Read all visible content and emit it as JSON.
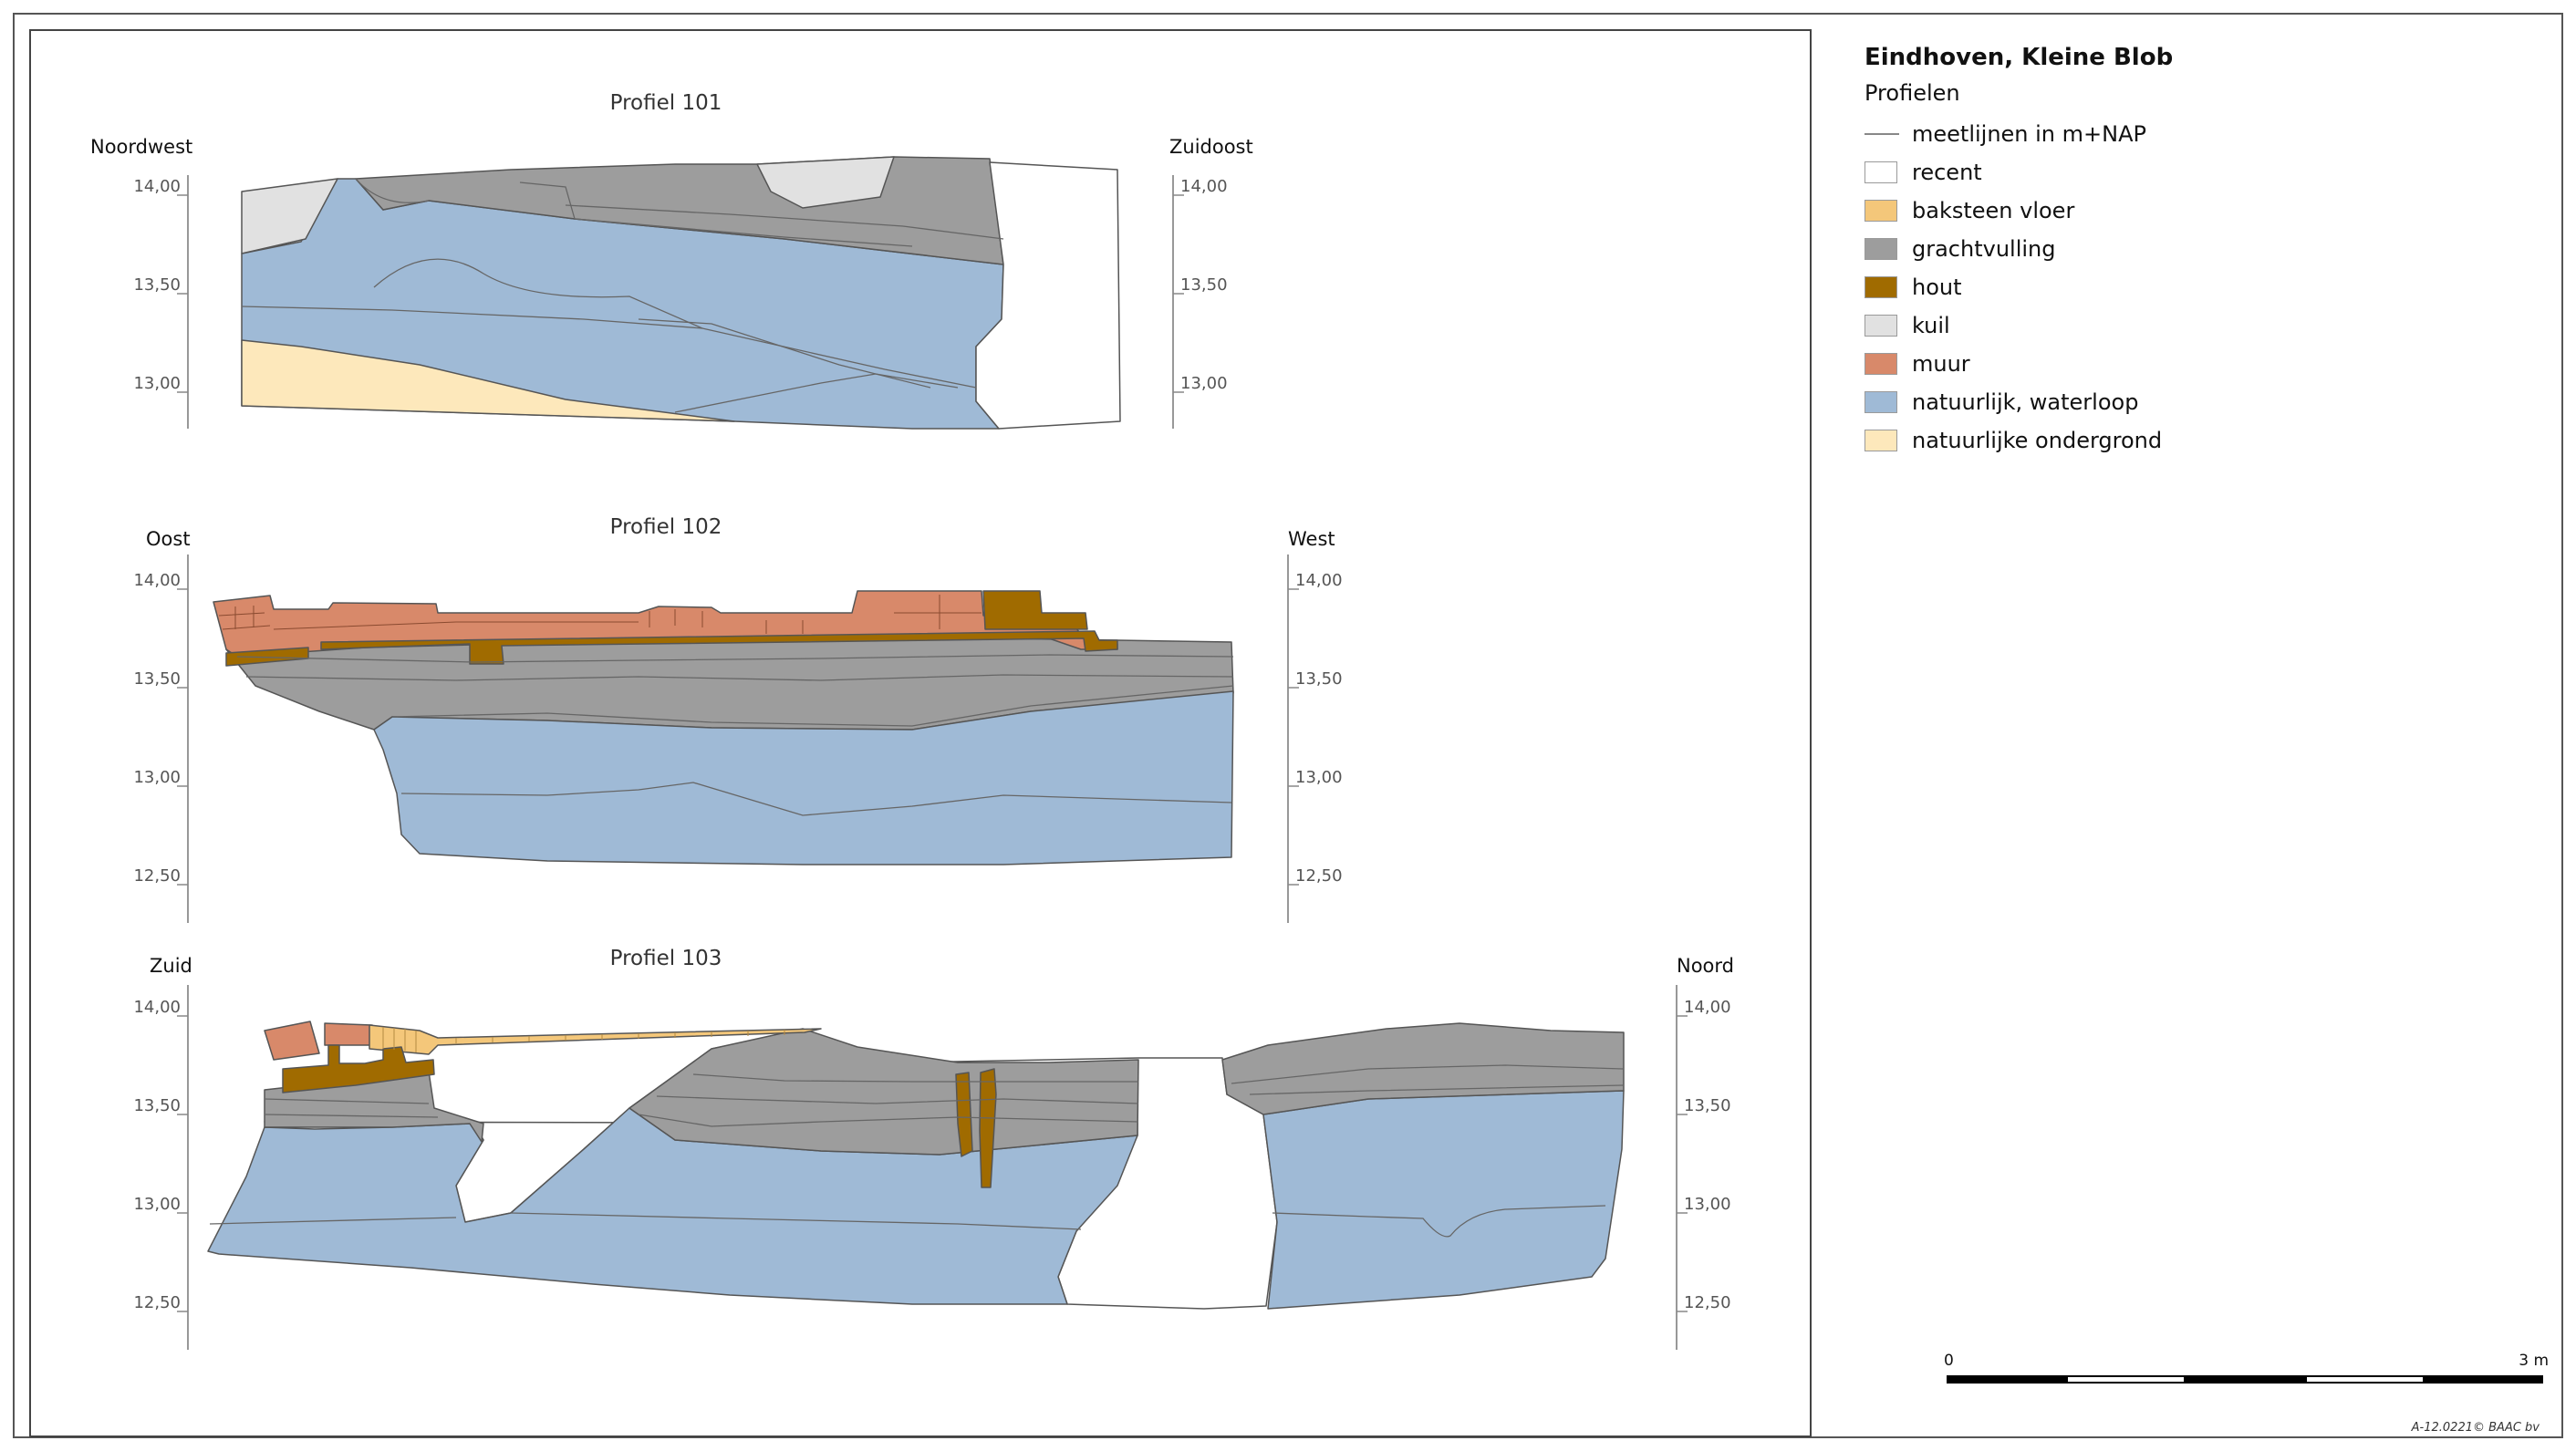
{
  "legend": {
    "title": "Eindhoven, Kleine Blob",
    "subtitle": "Profielen",
    "measure_line_label": "meetlijnen in m+NAP",
    "items": [
      {
        "label": "recent",
        "color": "#ffffff"
      },
      {
        "label": "baksteen vloer",
        "color": "#f4c77a"
      },
      {
        "label": "grachtvulling",
        "color": "#9d9d9d"
      },
      {
        "label": "hout",
        "color": "#a06b00"
      },
      {
        "label": "kuil",
        "color": "#e1e1e1"
      },
      {
        "label": "muur",
        "color": "#d8896a"
      },
      {
        "label": "natuurlijk, waterloop",
        "color": "#9fbad6"
      },
      {
        "label": "natuurlijke ondergrond",
        "color": "#fde8bb"
      }
    ]
  },
  "profiles": [
    {
      "title": "Profiel 101",
      "left_label": "Noordwest",
      "right_label": "Zuidoost",
      "ticks": [
        "14,00",
        "13,50",
        "13,00"
      ]
    },
    {
      "title": "Profiel 102",
      "left_label": "Oost",
      "right_label": "West",
      "ticks": [
        "14,00",
        "13,50",
        "13,00",
        "12,50"
      ]
    },
    {
      "title": "Profiel 103",
      "left_label": "Zuid",
      "right_label": "Noord",
      "ticks": [
        "14,00",
        "13,50",
        "13,00",
        "12,50"
      ]
    }
  ],
  "scale": {
    "start": "0",
    "end": "3 m"
  },
  "credit": "A-12.0221© BAAC bv"
}
